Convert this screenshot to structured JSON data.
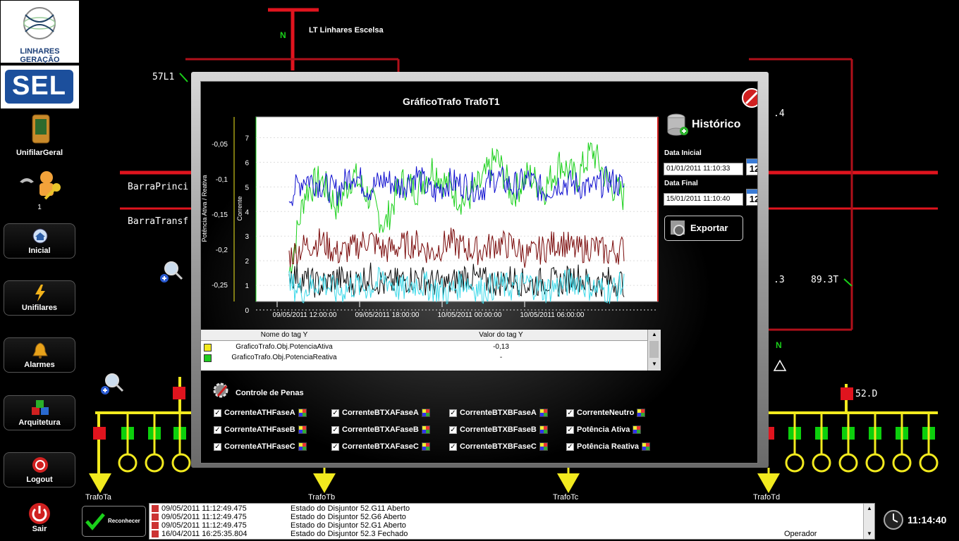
{
  "brand": {
    "company": "LINHARES GERAÇÃO",
    "sel_logo": "SEL"
  },
  "sidebar": {
    "unifilar_geral": "UnifilarGeral",
    "user_count": "1",
    "items": [
      {
        "label": "Inicial",
        "icon": "home-icon"
      },
      {
        "label": "Unifilares",
        "icon": "lightning-icon"
      },
      {
        "label": "Alarmes",
        "icon": "bell-icon"
      },
      {
        "label": "Arquitetura",
        "icon": "cubes-icon"
      },
      {
        "label": "Logout",
        "icon": "logout-icon"
      }
    ],
    "exit_label": "Sair"
  },
  "diagram": {
    "line_name": "LT Linhares Escelsa",
    "n_label": "N",
    "breaker_57L1": "57L1",
    "bus_principal": "BarraPrinci",
    "bus_transf": "BarraTransf",
    "label_4": ".4",
    "label_3": ".3",
    "label_893T": "89.3T",
    "breaker_52D": "52.D",
    "trafos": [
      "TrafoTa",
      "TrafoTb",
      "TrafoTc",
      "TrafoTd"
    ],
    "colors": {
      "bus_red": "#e0141e",
      "dark_red": "#b0101a",
      "bus_yellow": "#f2ea1e",
      "breaker_green": "#0ccf0c",
      "breaker_red": "#e0141e"
    }
  },
  "modal": {
    "title": "GráficoTrafo TrafoT1",
    "historico": {
      "title": "Histórico",
      "data_inicial_label": "Data Inicial",
      "data_inicial_value": "01/01/2011 11:10:33",
      "data_final_label": "Data Final",
      "data_final_value": "15/01/2011 11:10:40",
      "calendar_day": "12",
      "exportar_label": "Exportar"
    },
    "tag_table": {
      "col_name": "Nome do tag Y",
      "col_value": "Valor do tag Y",
      "rows": [
        {
          "name": "GraficoTrafo.Obj.PotenciaAtiva",
          "value": "-0,13",
          "color": "#f2ea1e"
        },
        {
          "name": "GraficoTrafo.Obj.PotenciaReativa",
          "value": "-",
          "color": "#1ecc1e"
        }
      ]
    },
    "pens": {
      "title": "Controle de Penas",
      "items": [
        [
          "CorrenteATHFaseA",
          "CorrenteBTXAFaseA",
          "CorrenteBTXBFaseA",
          "CorrenteNeutro"
        ],
        [
          "CorrenteATHFaseB",
          "CorrenteBTXAFaseB",
          "CorrenteBTXBFaseB",
          "Potência Ativa"
        ],
        [
          "CorrenteATHFaseC",
          "CorrenteBTXAFaseC",
          "CorrenteBTXBFaseC",
          "Potência Reativa"
        ]
      ]
    }
  },
  "chart_data": {
    "type": "line",
    "title": "GráficoTrafo TrafoT1",
    "ylabel_left": "Potência Ativa / Reativa",
    "ylabel_right": "Corrente",
    "y_left_ticks": [
      "-0,05",
      "-0,1",
      "-0,15",
      "-0,2",
      "-0,25"
    ],
    "y_right_ticks": [
      "7",
      "6",
      "5",
      "4",
      "3",
      "2",
      "1",
      "0"
    ],
    "ylim_right": [
      0,
      7.5
    ],
    "x_ticks": [
      "09/05/2011 12:00:00",
      "09/05/2011 18:00:00",
      "10/05/2011 00:00:00",
      "10/05/2011 06:00:00"
    ],
    "grid": true,
    "series": [
      {
        "color": "#1ad01a",
        "values": [
          1.5,
          4.8,
          5.3,
          4.2,
          5.5,
          4.6,
          3.4,
          5.2,
          4.9,
          5.8,
          5.0,
          4.4,
          5.1,
          6.2,
          4.7,
          5.5,
          4.9,
          6.0,
          5.3,
          6.5,
          5.2,
          4.6
        ]
      },
      {
        "color": "#1010d0",
        "values": [
          4.6,
          5.4,
          5.1,
          4.8,
          5.6,
          4.9,
          5.3,
          5.0,
          5.5,
          4.7,
          5.2,
          5.1,
          4.9,
          5.4,
          5.0,
          5.3,
          4.8,
          5.2,
          5.1,
          4.9,
          5.3,
          5.0
        ]
      },
      {
        "color": "#7a0a0a",
        "values": [
          2.2,
          2.6,
          2.8,
          2.3,
          2.5,
          2.9,
          2.4,
          2.6,
          2.7,
          2.3,
          2.8,
          2.5,
          2.4,
          2.7,
          2.6,
          2.2,
          2.5,
          2.8,
          2.4,
          2.6,
          2.3,
          2.5
        ]
      },
      {
        "color": "#0a0a0a",
        "values": [
          1.5,
          1.2,
          1.0,
          1.3,
          1.1,
          1.4,
          1.0,
          1.2,
          1.3,
          1.1,
          1.0,
          1.4,
          1.2,
          1.1,
          1.3,
          1.0,
          1.2,
          1.1,
          1.4,
          1.0,
          1.2,
          1.1
        ]
      },
      {
        "color": "#3ad8e8",
        "values": [
          1.0,
          0.8,
          1.2,
          0.7,
          1.0,
          0.9,
          1.3,
          0.8,
          1.1,
          0.9,
          0.7,
          1.2,
          0.8,
          1.0,
          0.9,
          1.1,
          0.8,
          1.0,
          1.2,
          0.9,
          0.8,
          1.0
        ]
      }
    ]
  },
  "event_log": {
    "rows": [
      {
        "time": "09/05/2011 11:12:49.475",
        "msg": "Estado do Disjuntor 52.G11 Aberto",
        "user": ""
      },
      {
        "time": "09/05/2011 11:12:49.475",
        "msg": "Estado do Disjuntor 52.G6 Aberto",
        "user": ""
      },
      {
        "time": "09/05/2011 11:12:49.475",
        "msg": "Estado do Disjuntor 52.G1 Aberto",
        "user": ""
      },
      {
        "time": "16/04/2011 16:25:35.804",
        "msg": "Estado do Disjuntor 52.3 Fechado",
        "user": "Operador"
      }
    ],
    "ack_label": "Reconhecer"
  },
  "clock": "11:14:40"
}
